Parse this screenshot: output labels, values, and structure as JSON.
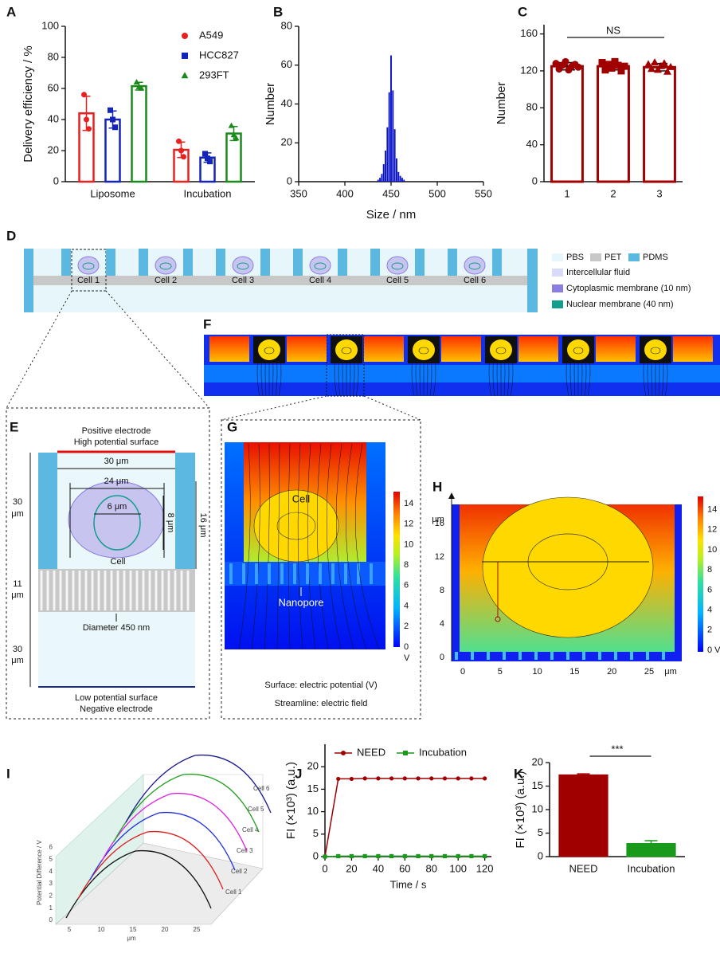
{
  "chart_data": [
    {
      "type": "bar",
      "panel": "A",
      "ylabel": "Delivery efficiency / %",
      "categories": [
        "Liposome",
        "Incubation"
      ],
      "series": [
        {
          "name": "A549",
          "color": "#e8201f",
          "marker": "circle",
          "values": [
            44,
            20.5
          ],
          "errors": [
            11,
            5
          ],
          "points": [
            [
              56,
              40,
              34
            ],
            [
              26,
              20,
              16
            ]
          ]
        },
        {
          "name": "HCC827",
          "color": "#1524b8",
          "marker": "square",
          "values": [
            40,
            15.5
          ],
          "errors": [
            5.5,
            3
          ],
          "points": [
            [
              46,
              40,
              35
            ],
            [
              18,
              15,
              13
            ]
          ]
        },
        {
          "name": "293FT",
          "color": "#1a8a1a",
          "marker": "triangle",
          "values": [
            61.5,
            31
          ],
          "errors": [
            2.5,
            4.5
          ],
          "points": [
            [
              64,
              61,
              60
            ],
            [
              36,
              30,
              28
            ]
          ]
        }
      ],
      "ylim": [
        0,
        100
      ],
      "yticks": [
        0,
        20,
        40,
        60,
        80,
        100
      ]
    },
    {
      "type": "histogram",
      "panel": "B",
      "xlabel": "Size / nm",
      "ylabel": "Number",
      "color": "#0a14c8",
      "bins": [
        435,
        437,
        439,
        441,
        443,
        445,
        447,
        449,
        451,
        453,
        455,
        457,
        459,
        461,
        463,
        465
      ],
      "counts": [
        1,
        2,
        4,
        9,
        16,
        28,
        46,
        65,
        47,
        27,
        12,
        5,
        3,
        2,
        1
      ],
      "xlim": [
        350,
        550
      ],
      "xticks": [
        350,
        400,
        450,
        500,
        550
      ],
      "ylim": [
        0,
        80
      ],
      "yticks": [
        0,
        20,
        40,
        60,
        80
      ]
    },
    {
      "type": "bar",
      "panel": "C",
      "ylabel": "Number",
      "categories": [
        "1",
        "2",
        "3"
      ],
      "values": [
        125,
        125,
        124
      ],
      "errors": [
        4,
        4,
        4
      ],
      "markers": [
        "circle",
        "square",
        "triangle"
      ],
      "points": [
        [
          128,
          122,
          126,
          130,
          121,
          125,
          127,
          124
        ],
        [
          129,
          121,
          127,
          123,
          130,
          126,
          120,
          125
        ],
        [
          127,
          122,
          129,
          121,
          125,
          128,
          119,
          124
        ]
      ],
      "color": "#a00000",
      "ylim": [
        0,
        170
      ],
      "yticks": [
        0,
        40,
        80,
        120,
        160
      ],
      "annotation": "NS"
    },
    {
      "type": "line",
      "panel": "J",
      "xlabel": "Time / s",
      "ylabel": "FI (×10³) (a.u.)",
      "x": [
        0,
        10,
        20,
        30,
        40,
        50,
        60,
        70,
        80,
        90,
        100,
        110,
        120
      ],
      "series": [
        {
          "name": "NEED",
          "color": "#a00000",
          "marker": "circle",
          "values": [
            0,
            17.3,
            17.3,
            17.4,
            17.4,
            17.4,
            17.4,
            17.4,
            17.4,
            17.4,
            17.4,
            17.4,
            17.4
          ]
        },
        {
          "name": "Incubation",
          "color": "#1a9a1a",
          "marker": "square",
          "values": [
            0,
            0.1,
            0.1,
            0.1,
            0.1,
            0.1,
            0.1,
            0.1,
            0.1,
            0.1,
            0.1,
            0.1,
            0.1
          ]
        }
      ],
      "xlim": [
        0,
        125
      ],
      "xticks": [
        0,
        20,
        40,
        60,
        80,
        100,
        120
      ],
      "ylim": [
        0,
        25
      ],
      "yticks": [
        0,
        5,
        10,
        15,
        20
      ]
    },
    {
      "type": "bar",
      "panel": "K",
      "ylabel": "FI (×10³) (a.u.)",
      "categories": [
        "NEED",
        "Incubation"
      ],
      "values": [
        17.4,
        2.8
      ],
      "errors": [
        0.2,
        0.6
      ],
      "colors": [
        "#a00000",
        "#1a9a1a"
      ],
      "ylim": [
        0,
        20
      ],
      "yticks": [
        0,
        5,
        10,
        15,
        20
      ],
      "annotation": "***"
    }
  ],
  "figure": {
    "D": {
      "panel": "D",
      "cells": [
        "Cell 1",
        "Cell 2",
        "Cell 3",
        "Cell 4",
        "Cell 5",
        "Cell 6"
      ],
      "legend": [
        "PBS",
        "PET",
        "PDMS",
        "Intercellular fluid",
        "Cytoplasmic membrane (10 nm)",
        "Nuclear membrane (40 nm)"
      ]
    },
    "E": {
      "panel": "E",
      "top": [
        "Positive electrode",
        "High potential surface"
      ],
      "bottom": [
        "Low potential surface",
        "Negative electrode"
      ],
      "dimensions": [
        "30 μm",
        "24 μm",
        "6 μm",
        "8 μm",
        "16 μm"
      ],
      "left": [
        [
          "30",
          "μm"
        ],
        [
          "11",
          "μm"
        ],
        [
          "30",
          "μm"
        ]
      ],
      "cell": "Cell",
      "pore": "Diameter 450 nm"
    },
    "F": {
      "panel": "F"
    },
    "G": {
      "panel": "G",
      "cell": "Cell",
      "pore": "Nanopore",
      "colorbar_ticks": [
        0,
        2,
        4,
        6,
        8,
        10,
        12,
        14
      ],
      "unit": "V",
      "captions": [
        "Surface: electric potential (V)",
        "Streamline: electric field"
      ]
    },
    "H": {
      "panel": "H",
      "yticks": [
        0,
        4,
        8,
        12,
        16
      ],
      "yunit": "μm",
      "xticks": [
        0,
        5,
        10,
        15,
        20,
        25
      ],
      "xunit": "μm",
      "colorbar_ticks": [
        {
          "value": 0,
          "label": "0 V"
        },
        2,
        4,
        6,
        8,
        10,
        12,
        14
      ]
    },
    "I": {
      "panel": "I",
      "ylabel": "Potential Difference / V",
      "yticks": [
        0,
        1,
        2,
        3,
        4,
        5,
        6
      ],
      "xticks": [
        5,
        10,
        15,
        20,
        25
      ],
      "xunit": "μm",
      "cells": [
        "Cell 1",
        "Cell 2",
        "Cell 3",
        "Cell 4",
        "Cell 5",
        "Cell 6"
      ]
    }
  }
}
